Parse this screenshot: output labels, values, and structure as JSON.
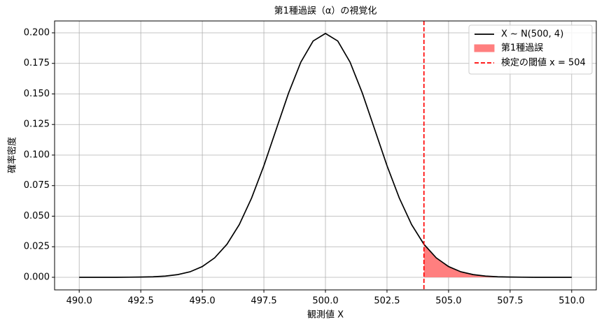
{
  "chart_data": {
    "type": "line",
    "title": "第1種過誤（α）の視覚化",
    "xlabel": "観測値 X",
    "ylabel": "確率密度",
    "x": [
      490,
      490.5,
      491,
      491.5,
      492,
      492.5,
      493,
      493.5,
      494,
      494.5,
      495,
      495.5,
      496,
      496.5,
      497,
      497.5,
      498,
      498.5,
      499,
      499.5,
      500,
      500.5,
      501,
      501.5,
      502,
      502.5,
      503,
      503.5,
      504,
      504.5,
      505,
      505.5,
      506,
      506.5,
      507,
      507.5,
      508,
      508.5,
      509,
      509.5,
      510
    ],
    "series": [
      {
        "name": "X ~ N(500, 4)",
        "color": "#000000",
        "values": [
          0,
          0,
          0,
          0,
          0.0001,
          0.0002,
          0.0004,
          0.001,
          0.0022,
          0.0045,
          0.0088,
          0.0159,
          0.027,
          0.0431,
          0.0648,
          0.0913,
          0.121,
          0.1506,
          0.176,
          0.1933,
          0.1995,
          0.1933,
          0.176,
          0.1506,
          0.121,
          0.0913,
          0.0648,
          0.0431,
          0.027,
          0.0159,
          0.0088,
          0.0045,
          0.0022,
          0.001,
          0.0004,
          0.0002,
          0.0001,
          0,
          0,
          0,
          0
        ]
      }
    ],
    "area": {
      "name": "第1種過誤",
      "color": "#ff7f7f",
      "x": [
        504,
        504.5,
        505,
        505.5,
        506,
        506.5,
        507,
        507.5,
        508,
        508.5,
        509,
        509.5,
        510
      ],
      "values": [
        0.027,
        0.0159,
        0.0088,
        0.0045,
        0.0022,
        0.001,
        0.0004,
        0.0002,
        0.0001,
        0,
        0,
        0,
        0
      ]
    },
    "threshold": {
      "name": "検定の閾値 x = 504",
      "value": 504,
      "color": "#ff0000"
    },
    "xlim": [
      489,
      511
    ],
    "ylim": [
      -0.0103,
      0.2097
    ],
    "xticks": [
      {
        "value": 490,
        "label": "490.0"
      },
      {
        "value": 492.5,
        "label": "492.5"
      },
      {
        "value": 495,
        "label": "495.0"
      },
      {
        "value": 497.5,
        "label": "497.5"
      },
      {
        "value": 500,
        "label": "500.0"
      },
      {
        "value": 502.5,
        "label": "502.5"
      },
      {
        "value": 505,
        "label": "505.0"
      },
      {
        "value": 507.5,
        "label": "507.5"
      },
      {
        "value": 510,
        "label": "510.0"
      }
    ],
    "yticks": [
      {
        "value": 0,
        "label": "0.000"
      },
      {
        "value": 0.025,
        "label": "0.025"
      },
      {
        "value": 0.05,
        "label": "0.050"
      },
      {
        "value": 0.075,
        "label": "0.075"
      },
      {
        "value": 0.1,
        "label": "0.100"
      },
      {
        "value": 0.125,
        "label": "0.125"
      },
      {
        "value": 0.15,
        "label": "0.150"
      },
      {
        "value": 0.175,
        "label": "0.175"
      },
      {
        "value": 0.2,
        "label": "0.200"
      }
    ],
    "grid": true,
    "legend": "upper right"
  }
}
